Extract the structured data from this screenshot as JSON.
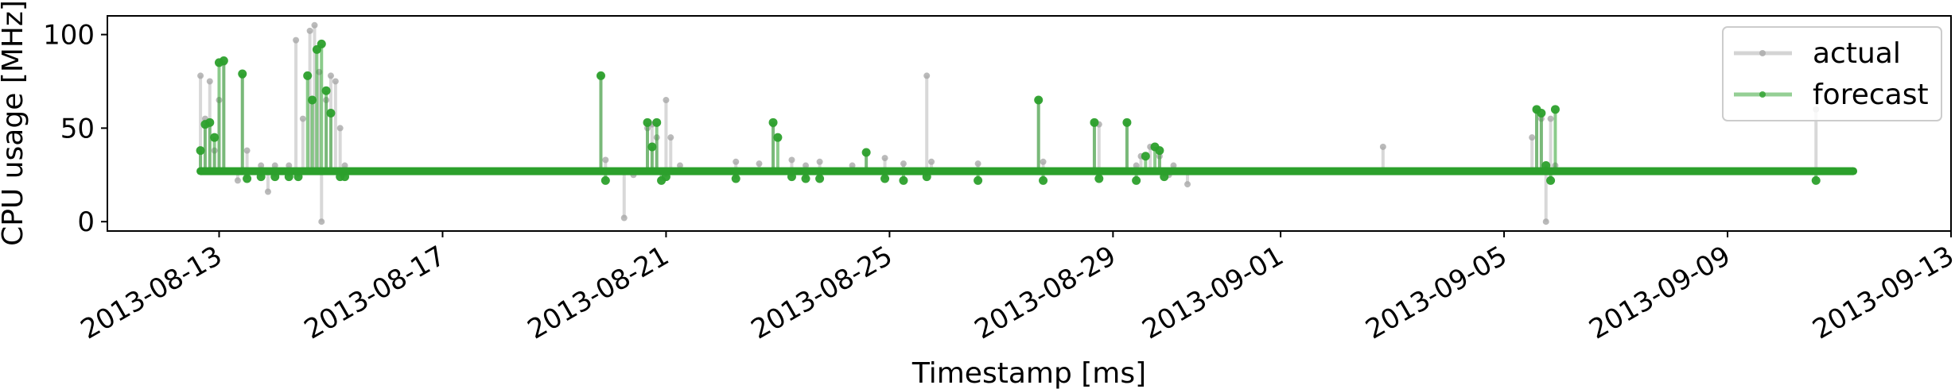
{
  "chart_data": {
    "type": "line",
    "xlabel": "Timestamp [ms]",
    "ylabel": "CPU usage [MHz]",
    "xlim": [
      "2013-08-11T00:00:00",
      "2013-09-13T00:00:00"
    ],
    "ylim": [
      -5,
      110
    ],
    "x_ticks": [
      "2013-08-13",
      "2013-08-17",
      "2013-08-21",
      "2013-08-25",
      "2013-08-29",
      "2013-09-01",
      "2013-09-05",
      "2013-09-09",
      "2013-09-13"
    ],
    "y_ticks": [
      0,
      50,
      100
    ],
    "grid": false,
    "legend_position": "top-right",
    "colors": {
      "actual": "#a9a9a9",
      "forecast": "#2ca02c"
    },
    "series": [
      {
        "name": "actual",
        "color": "#a9a9a9",
        "baseline": 27,
        "x_range": [
          "2013-08-12T16:00:00",
          "2013-09-11T06:00:00"
        ],
        "spikes": [
          [
            "2013-08-12T16:00:00",
            78
          ],
          [
            "2013-08-12T18:00:00",
            55
          ],
          [
            "2013-08-12T20:00:00",
            75
          ],
          [
            "2013-08-12T22:00:00",
            38
          ],
          [
            "2013-08-13T00:00:00",
            65
          ],
          [
            "2013-08-13T02:00:00",
            85
          ],
          [
            "2013-08-13T08:00:00",
            22
          ],
          [
            "2013-08-13T10:00:00",
            78
          ],
          [
            "2013-08-13T12:00:00",
            38
          ],
          [
            "2013-08-13T18:00:00",
            30
          ],
          [
            "2013-08-13T21:00:00",
            16
          ],
          [
            "2013-08-14T00:00:00",
            30
          ],
          [
            "2013-08-14T06:00:00",
            30
          ],
          [
            "2013-08-14T09:00:00",
            97
          ],
          [
            "2013-08-14T12:00:00",
            55
          ],
          [
            "2013-08-14T15:00:00",
            102
          ],
          [
            "2013-08-14T17:00:00",
            105
          ],
          [
            "2013-08-14T19:00:00",
            80
          ],
          [
            "2013-08-14T20:00:00",
            0
          ],
          [
            "2013-08-14T22:00:00",
            65
          ],
          [
            "2013-08-15T00:00:00",
            78
          ],
          [
            "2013-08-15T02:00:00",
            75
          ],
          [
            "2013-08-15T04:00:00",
            50
          ],
          [
            "2013-08-15T06:00:00",
            30
          ],
          [
            "2013-08-19T20:00:00",
            78
          ],
          [
            "2013-08-19T22:00:00",
            33
          ],
          [
            "2013-08-20T06:00:00",
            2
          ],
          [
            "2013-08-20T10:00:00",
            25
          ],
          [
            "2013-08-20T16:00:00",
            50
          ],
          [
            "2013-08-20T18:00:00",
            52
          ],
          [
            "2013-08-20T20:00:00",
            45
          ],
          [
            "2013-08-21T00:00:00",
            65
          ],
          [
            "2013-08-21T02:00:00",
            45
          ],
          [
            "2013-08-21T06:00:00",
            30
          ],
          [
            "2013-08-22T06:00:00",
            32
          ],
          [
            "2013-08-22T16:00:00",
            31
          ],
          [
            "2013-08-22T22:00:00",
            52
          ],
          [
            "2013-08-23T06:00:00",
            33
          ],
          [
            "2013-08-23T12:00:00",
            30
          ],
          [
            "2013-08-23T18:00:00",
            32
          ],
          [
            "2013-08-24T08:00:00",
            30
          ],
          [
            "2013-08-24T14:00:00",
            37
          ],
          [
            "2013-08-24T22:00:00",
            34
          ],
          [
            "2013-08-25T06:00:00",
            31
          ],
          [
            "2013-08-25T16:00:00",
            78
          ],
          [
            "2013-08-25T18:00:00",
            32
          ],
          [
            "2013-08-26T14:00:00",
            31
          ],
          [
            "2013-08-27T16:00:00",
            65
          ],
          [
            "2013-08-27T18:00:00",
            32
          ],
          [
            "2013-08-28T16:00:00",
            53
          ],
          [
            "2013-08-28T18:00:00",
            52
          ],
          [
            "2013-08-29T06:00:00",
            53
          ],
          [
            "2013-08-29T10:00:00",
            30
          ],
          [
            "2013-08-29T12:00:00",
            35
          ],
          [
            "2013-08-29T16:00:00",
            40
          ],
          [
            "2013-08-29T20:00:00",
            35
          ],
          [
            "2013-08-30T00:00:00",
            25
          ],
          [
            "2013-08-30T02:00:00",
            30
          ],
          [
            "2013-08-30T08:00:00",
            20
          ],
          [
            "2013-09-02T20:00:00",
            40
          ],
          [
            "2013-09-05T12:00:00",
            45
          ],
          [
            "2013-09-05T14:00:00",
            60
          ],
          [
            "2013-09-05T16:00:00",
            55
          ],
          [
            "2013-09-05T18:00:00",
            0
          ],
          [
            "2013-09-05T20:00:00",
            55
          ],
          [
            "2013-09-05T22:00:00",
            30
          ],
          [
            "2013-09-10T14:00:00",
            60
          ]
        ]
      },
      {
        "name": "forecast",
        "color": "#2ca02c",
        "baseline": 27,
        "x_range": [
          "2013-08-12T16:00:00",
          "2013-09-11T06:00:00"
        ],
        "spikes": [
          [
            "2013-08-12T16:00:00",
            38
          ],
          [
            "2013-08-12T18:00:00",
            52
          ],
          [
            "2013-08-12T20:00:00",
            53
          ],
          [
            "2013-08-12T22:00:00",
            45
          ],
          [
            "2013-08-13T00:00:00",
            85
          ],
          [
            "2013-08-13T02:00:00",
            86
          ],
          [
            "2013-08-13T10:00:00",
            79
          ],
          [
            "2013-08-13T12:00:00",
            23
          ],
          [
            "2013-08-13T18:00:00",
            24
          ],
          [
            "2013-08-14T00:00:00",
            24
          ],
          [
            "2013-08-14T06:00:00",
            24
          ],
          [
            "2013-08-14T10:00:00",
            24
          ],
          [
            "2013-08-14T14:00:00",
            78
          ],
          [
            "2013-08-14T16:00:00",
            65
          ],
          [
            "2013-08-14T18:00:00",
            92
          ],
          [
            "2013-08-14T20:00:00",
            95
          ],
          [
            "2013-08-14T22:00:00",
            70
          ],
          [
            "2013-08-15T00:00:00",
            58
          ],
          [
            "2013-08-15T04:00:00",
            24
          ],
          [
            "2013-08-15T06:00:00",
            24
          ],
          [
            "2013-08-19T20:00:00",
            78
          ],
          [
            "2013-08-19T22:00:00",
            22
          ],
          [
            "2013-08-20T16:00:00",
            53
          ],
          [
            "2013-08-20T18:00:00",
            40
          ],
          [
            "2013-08-20T20:00:00",
            53
          ],
          [
            "2013-08-20T22:00:00",
            22
          ],
          [
            "2013-08-21T00:00:00",
            24
          ],
          [
            "2013-08-22T06:00:00",
            23
          ],
          [
            "2013-08-22T22:00:00",
            53
          ],
          [
            "2013-08-23T00:00:00",
            45
          ],
          [
            "2013-08-23T06:00:00",
            24
          ],
          [
            "2013-08-23T12:00:00",
            23
          ],
          [
            "2013-08-23T18:00:00",
            23
          ],
          [
            "2013-08-24T14:00:00",
            37
          ],
          [
            "2013-08-24T22:00:00",
            23
          ],
          [
            "2013-08-25T06:00:00",
            22
          ],
          [
            "2013-08-25T16:00:00",
            24
          ],
          [
            "2013-08-26T14:00:00",
            22
          ],
          [
            "2013-08-27T16:00:00",
            65
          ],
          [
            "2013-08-27T18:00:00",
            22
          ],
          [
            "2013-08-28T16:00:00",
            53
          ],
          [
            "2013-08-28T18:00:00",
            23
          ],
          [
            "2013-08-29T06:00:00",
            53
          ],
          [
            "2013-08-29T10:00:00",
            22
          ],
          [
            "2013-08-29T14:00:00",
            35
          ],
          [
            "2013-08-29T18:00:00",
            40
          ],
          [
            "2013-08-29T20:00:00",
            38
          ],
          [
            "2013-08-29T22:00:00",
            24
          ],
          [
            "2013-09-05T14:00:00",
            60
          ],
          [
            "2013-09-05T16:00:00",
            58
          ],
          [
            "2013-09-05T18:00:00",
            30
          ],
          [
            "2013-09-05T20:00:00",
            22
          ],
          [
            "2013-09-05T22:00:00",
            60
          ],
          [
            "2013-09-10T14:00:00",
            22
          ]
        ]
      }
    ]
  }
}
